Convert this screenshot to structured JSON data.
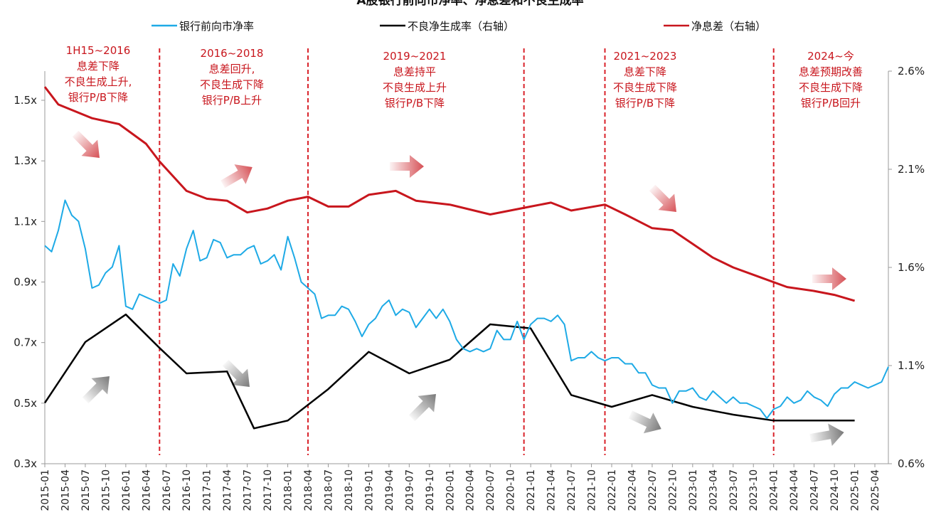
{
  "chart_data": {
    "type": "line",
    "title": "A股银行前向市净率、净息差和不良生成率",
    "legend": [
      {
        "name": "银行前向市净率",
        "color": "#1EAAE6"
      },
      {
        "name": "不良净生成率（右轴）",
        "color": "#000000"
      },
      {
        "name": "净息差（右轴）",
        "color": "#C8161D"
      }
    ],
    "left_axis": {
      "ticks": [
        "1.5x",
        "1.3x",
        "1.1x",
        "0.9x",
        "0.7x",
        "0.5x",
        "0.3x"
      ],
      "values": [
        1.5,
        1.3,
        1.1,
        0.9,
        0.7,
        0.5,
        0.3
      ],
      "ylim": [
        0.3,
        1.6
      ]
    },
    "right_axis": {
      "ticks": [
        "2.6%",
        "2.1%",
        "1.6%",
        "1.1%",
        "0.6%"
      ],
      "values": [
        2.6,
        2.1,
        1.6,
        1.1,
        0.6
      ],
      "ylim": [
        0.6,
        2.6
      ]
    },
    "x_labels": [
      "2015-01",
      "2015-04",
      "2015-07",
      "2015-10",
      "2016-01",
      "2016-04",
      "2016-07",
      "2016-10",
      "2017-01",
      "2017-04",
      "2017-07",
      "2017-10",
      "2018-01",
      "2018-04",
      "2018-07",
      "2018-10",
      "2019-01",
      "2019-04",
      "2019-07",
      "2019-10",
      "2020-01",
      "2020-04",
      "2020-07",
      "2020-10",
      "2021-01",
      "2021-04",
      "2021-07",
      "2021-10",
      "2022-01",
      "2022-04",
      "2022-07",
      "2022-10",
      "2023-01",
      "2023-04",
      "2023-07",
      "2023-10",
      "2024-01",
      "2024-04",
      "2024-07",
      "2024-10",
      "2025-01",
      "2025-04"
    ],
    "x_range_months": [
      0,
      125
    ],
    "dividers_month": [
      17,
      39,
      71,
      83,
      108
    ],
    "periods": [
      {
        "lines": [
          "1H15~2016",
          "息差下降",
          "不良生成上升,",
          "银行P/B下降"
        ]
      },
      {
        "lines": [
          "2016~2018",
          "息差回升,",
          "不良生成下降",
          "银行P/B上升"
        ]
      },
      {
        "lines": [
          "2019~2021",
          "息差持平",
          "不良生成上升",
          "银行P/B下降"
        ]
      },
      {
        "lines": [
          "2021~2023",
          "息差下降",
          "不良生成下降",
          "银行P/B下降"
        ]
      },
      {
        "lines": [
          "2024~今",
          "息差预期改善",
          "不良生成下降",
          "银行P/B回升"
        ]
      }
    ],
    "series": [
      {
        "name": "银行前向市净率",
        "axis": "left",
        "color": "#1EAAE6",
        "x": [
          0,
          1,
          2,
          3,
          4,
          5,
          6,
          7,
          8,
          9,
          10,
          11,
          12,
          13,
          14,
          15,
          16,
          17,
          18,
          19,
          20,
          21,
          22,
          23,
          24,
          25,
          26,
          27,
          28,
          29,
          30,
          31,
          32,
          33,
          34,
          35,
          36,
          37,
          38,
          39,
          40,
          41,
          42,
          43,
          44,
          45,
          46,
          47,
          48,
          49,
          50,
          51,
          52,
          53,
          54,
          55,
          56,
          57,
          58,
          59,
          60,
          61,
          62,
          63,
          64,
          65,
          66,
          67,
          68,
          69,
          70,
          71,
          72,
          73,
          74,
          75,
          76,
          77,
          78,
          79,
          80,
          81,
          82,
          83,
          84,
          85,
          86,
          87,
          88,
          89,
          90,
          91,
          92,
          93,
          94,
          95,
          96,
          97,
          98,
          99,
          100,
          101,
          102,
          103,
          104,
          105,
          106,
          107,
          108,
          109,
          110,
          111,
          112,
          113,
          114,
          115,
          116,
          117,
          118,
          119,
          120,
          121,
          122,
          123,
          124,
          125
        ],
        "values": [
          1.02,
          1.0,
          1.07,
          1.17,
          1.12,
          1.1,
          1.01,
          0.88,
          0.89,
          0.93,
          0.95,
          1.02,
          0.82,
          0.81,
          0.86,
          0.85,
          0.84,
          0.83,
          0.84,
          0.96,
          0.92,
          1.01,
          1.07,
          0.97,
          0.98,
          1.04,
          1.03,
          0.98,
          0.99,
          0.99,
          1.01,
          1.02,
          0.96,
          0.97,
          0.99,
          0.94,
          1.05,
          0.98,
          0.9,
          0.88,
          0.86,
          0.78,
          0.79,
          0.79,
          0.82,
          0.81,
          0.77,
          0.72,
          0.76,
          0.78,
          0.82,
          0.84,
          0.79,
          0.81,
          0.8,
          0.75,
          0.78,
          0.81,
          0.78,
          0.81,
          0.77,
          0.71,
          0.68,
          0.67,
          0.68,
          0.67,
          0.68,
          0.74,
          0.71,
          0.71,
          0.77,
          0.71,
          0.76,
          0.78,
          0.78,
          0.77,
          0.79,
          0.76,
          0.64,
          0.65,
          0.65,
          0.67,
          0.65,
          0.64,
          0.65,
          0.65,
          0.63,
          0.63,
          0.6,
          0.6,
          0.56,
          0.55,
          0.55,
          0.5,
          0.54,
          0.54,
          0.55,
          0.52,
          0.51,
          0.54,
          0.52,
          0.5,
          0.52,
          0.5,
          0.5,
          0.49,
          0.48,
          0.45,
          0.48,
          0.49,
          0.52,
          0.5,
          0.51,
          0.54,
          0.52,
          0.51,
          0.49,
          0.53,
          0.55,
          0.55,
          0.57,
          0.56,
          0.55,
          0.56,
          0.57,
          0.62
        ]
      },
      {
        "name": "不良净生成率（右轴）",
        "axis": "right",
        "color": "#000000",
        "x": [
          0,
          6,
          12,
          17,
          21,
          27,
          31,
          36,
          42,
          48,
          54,
          60,
          66,
          72,
          78,
          84,
          90,
          96,
          102,
          108,
          114,
          120
        ],
        "values": [
          0.91,
          1.22,
          1.36,
          1.19,
          1.06,
          1.07,
          0.78,
          0.82,
          0.98,
          1.17,
          1.06,
          1.13,
          1.31,
          1.29,
          0.95,
          0.89,
          0.95,
          0.89,
          0.85,
          0.82,
          0.82,
          0.82
        ]
      },
      {
        "name": "净息差（右轴）",
        "axis": "right",
        "color": "#C8161D",
        "x": [
          0,
          2,
          7,
          11,
          15,
          17,
          21,
          24,
          27,
          30,
          33,
          36,
          39,
          42,
          45,
          48,
          52,
          55,
          60,
          66,
          72,
          75,
          78,
          83,
          86,
          90,
          93,
          96,
          99,
          102,
          106,
          110,
          114,
          117,
          120
        ],
        "values": [
          2.52,
          2.43,
          2.36,
          2.33,
          2.23,
          2.14,
          1.99,
          1.95,
          1.94,
          1.88,
          1.9,
          1.94,
          1.96,
          1.91,
          1.91,
          1.97,
          1.99,
          1.94,
          1.92,
          1.87,
          1.91,
          1.93,
          1.89,
          1.92,
          1.87,
          1.8,
          1.79,
          1.72,
          1.65,
          1.6,
          1.55,
          1.5,
          1.48,
          1.46,
          1.43
        ]
      }
    ]
  }
}
